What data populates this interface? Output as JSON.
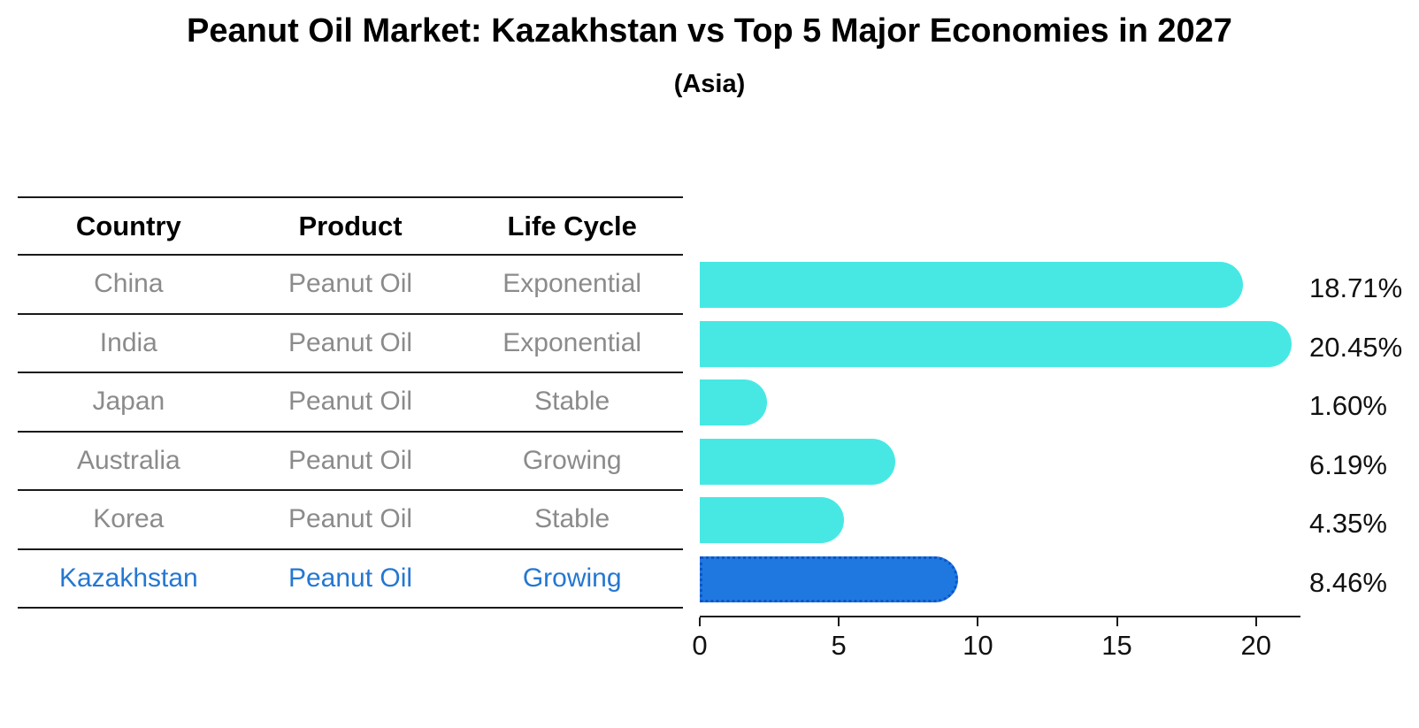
{
  "page": {
    "title": "Peanut Oil Market: Kazakhstan vs Top 5 Major Economies in 2027",
    "subtitle": "(Asia)"
  },
  "table": {
    "headers": [
      "Country",
      "Product",
      "Life Cycle"
    ],
    "rows": [
      {
        "country": "China",
        "product": "Peanut Oil",
        "life_cycle": "Exponential",
        "highlight": false
      },
      {
        "country": "India",
        "product": "Peanut Oil",
        "life_cycle": "Exponential",
        "highlight": false
      },
      {
        "country": "Japan",
        "product": "Peanut Oil",
        "life_cycle": "Stable",
        "highlight": false
      },
      {
        "country": "Australia",
        "product": "Peanut Oil",
        "life_cycle": "Growing",
        "highlight": false
      },
      {
        "country": "Korea",
        "product": "Peanut Oil",
        "life_cycle": "Stable",
        "highlight": false
      },
      {
        "country": "Kazakhstan",
        "product": "Peanut Oil",
        "life_cycle": "Growing",
        "highlight": true
      }
    ]
  },
  "chart_data": {
    "type": "bar",
    "orientation": "horizontal",
    "title": "Peanut Oil Market: Kazakhstan vs Top 5 Major Economies in 2027",
    "subtitle": "(Asia)",
    "categories": [
      "China",
      "India",
      "Japan",
      "Australia",
      "Korea",
      "Kazakhstan"
    ],
    "values": [
      18.71,
      20.45,
      1.6,
      6.19,
      4.35,
      8.46
    ],
    "value_labels": [
      "18.71%",
      "20.45%",
      "1.60%",
      "6.19%",
      "4.35%",
      "8.46%"
    ],
    "x_ticks": [
      0,
      5,
      10,
      15,
      20
    ],
    "xlim": [
      0,
      21.6
    ],
    "grid": false,
    "legend": "none",
    "highlight_index": 5,
    "units": "percent"
  },
  "colors": {
    "bar_color": "#47e8e4",
    "highlight_bar_color": "#1f78e0",
    "highlight_border_color": "#0d55c8",
    "highlight_text_color": "#2477d2",
    "row_text_color": "#8b8b8b",
    "line_color": "#1a1a1a"
  }
}
